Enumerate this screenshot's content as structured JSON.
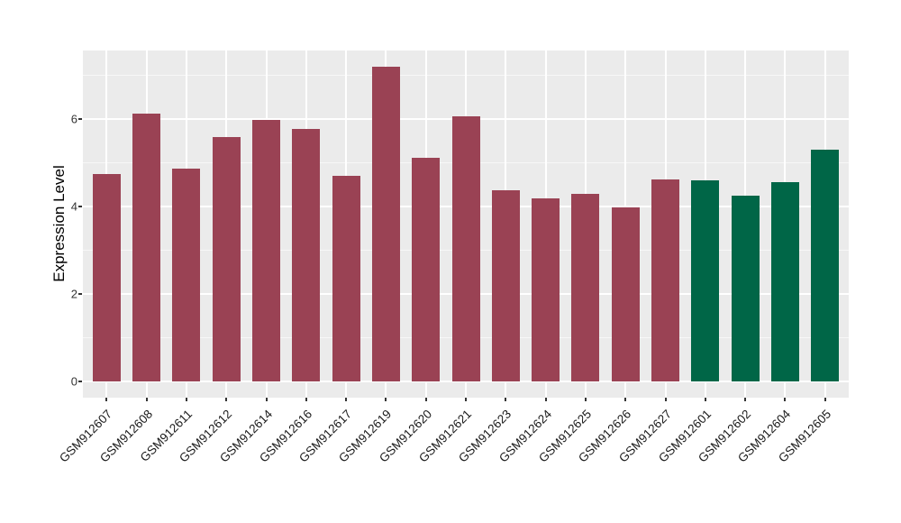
{
  "chart_data": {
    "type": "bar",
    "title": "",
    "xlabel": "",
    "ylabel": "Expression Level",
    "yticks": [
      0,
      2,
      4,
      6
    ],
    "yticks_minor": [
      1,
      3,
      5,
      7
    ],
    "ylim": [
      -0.38,
      7.56
    ],
    "grid": true,
    "legend": "none",
    "bars": [
      {
        "label": "GSM912607",
        "value": 4.73,
        "group": "maroon"
      },
      {
        "label": "GSM912608",
        "value": 6.11,
        "group": "maroon"
      },
      {
        "label": "GSM912611",
        "value": 4.86,
        "group": "maroon"
      },
      {
        "label": "GSM912612",
        "value": 5.58,
        "group": "maroon"
      },
      {
        "label": "GSM912614",
        "value": 5.98,
        "group": "maroon"
      },
      {
        "label": "GSM912616",
        "value": 5.76,
        "group": "maroon"
      },
      {
        "label": "GSM912617",
        "value": 4.7,
        "group": "maroon"
      },
      {
        "label": "GSM912619",
        "value": 7.19,
        "group": "maroon"
      },
      {
        "label": "GSM912620",
        "value": 5.1,
        "group": "maroon"
      },
      {
        "label": "GSM912621",
        "value": 6.05,
        "group": "maroon"
      },
      {
        "label": "GSM912623",
        "value": 4.36,
        "group": "maroon"
      },
      {
        "label": "GSM912624",
        "value": 4.18,
        "group": "maroon"
      },
      {
        "label": "GSM912625",
        "value": 4.29,
        "group": "maroon"
      },
      {
        "label": "GSM912626",
        "value": 3.98,
        "group": "maroon"
      },
      {
        "label": "GSM912627",
        "value": 4.61,
        "group": "maroon"
      },
      {
        "label": "GSM912601",
        "value": 4.59,
        "group": "green"
      },
      {
        "label": "GSM912602",
        "value": 4.24,
        "group": "green"
      },
      {
        "label": "GSM912604",
        "value": 4.54,
        "group": "green"
      },
      {
        "label": "GSM912605",
        "value": 5.3,
        "group": "green"
      }
    ],
    "group_colors": {
      "maroon": "#9A4254",
      "green": "#006647"
    },
    "style": {
      "panel_background": "#EBEBEB",
      "figure_background": "#FFFFFF",
      "grid_major_color": "#FFFFFF",
      "grid_minor_color": "rgba(255,255,255,0.6)",
      "tick_color": "#333333",
      "axis_title_color": "#000000"
    }
  }
}
